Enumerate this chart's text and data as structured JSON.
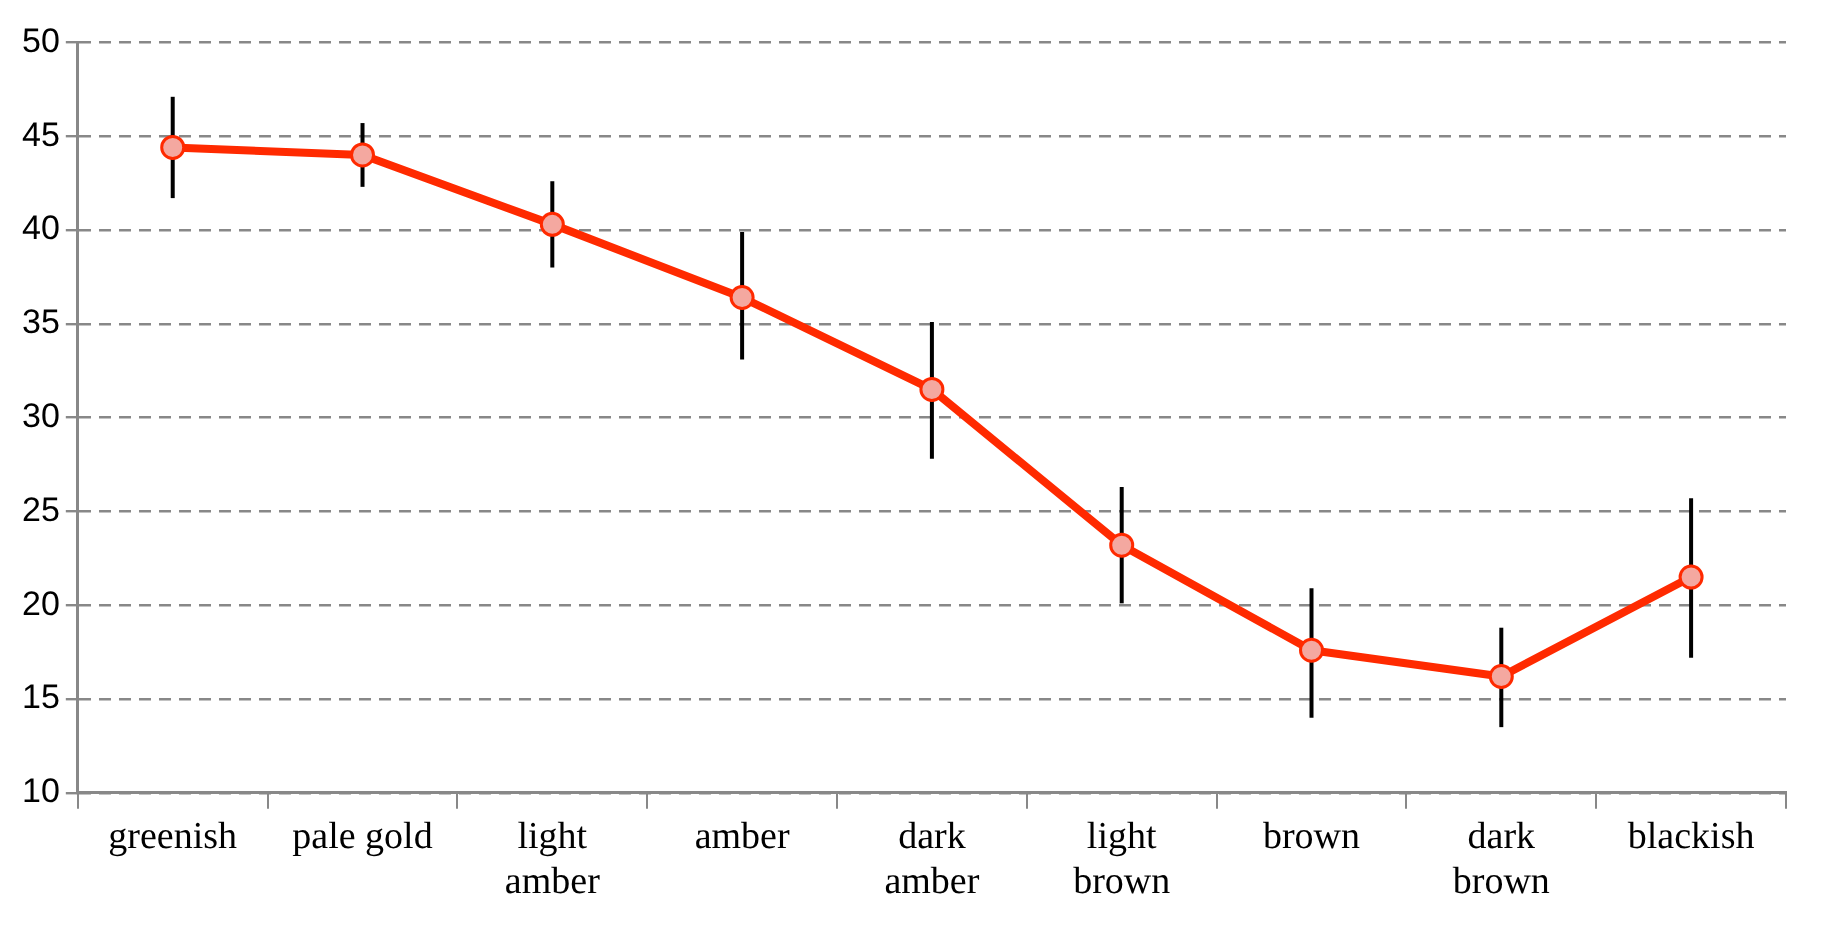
{
  "chart_data": {
    "type": "line",
    "categories": [
      "greenish",
      "pale gold",
      "light\namber",
      "amber",
      "dark\namber",
      "light\nbrown",
      "brown",
      "dark\nbrown",
      "blackish"
    ],
    "series": [
      {
        "color": "#ff2a00",
        "values": [
          44.4,
          44.0,
          40.3,
          36.4,
          31.5,
          23.2,
          17.6,
          16.2,
          21.5
        ],
        "errors": [
          [
            41.7,
            47.1
          ],
          [
            42.3,
            45.7
          ],
          [
            38.0,
            42.6
          ],
          [
            33.1,
            39.9
          ],
          [
            27.8,
            35.1
          ],
          [
            20.1,
            26.3
          ],
          [
            14.0,
            20.9
          ],
          [
            13.5,
            18.8
          ],
          [
            17.2,
            25.7
          ]
        ]
      }
    ],
    "ylim": [
      10,
      50
    ],
    "yticks": [
      10,
      15,
      20,
      25,
      30,
      35,
      40,
      45,
      50
    ],
    "grid": "y",
    "legend": false,
    "marker": "circle",
    "line_style": "solid"
  }
}
